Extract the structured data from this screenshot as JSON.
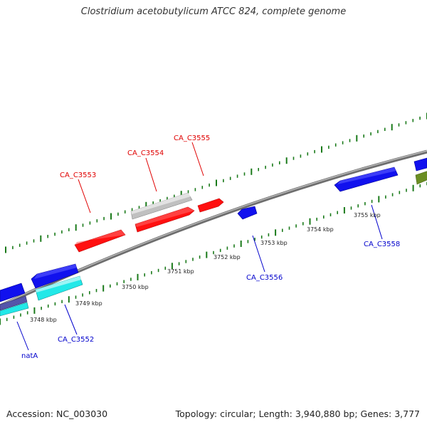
{
  "title": "Clostridium acetobutylicum ATCC 824, complete genome",
  "footer": {
    "accession": "Accession: NC_003030",
    "topology": "Topology: circular; Length: 3,940,880 bp; Genes: 3,777"
  },
  "scale": {
    "color": "#1a7a1a",
    "ticks": [
      {
        "label": "3748 kbp"
      },
      {
        "label": "3749 kbp"
      },
      {
        "label": "3750 kbp"
      },
      {
        "label": "3751 kbp"
      },
      {
        "label": "3752 kbp"
      },
      {
        "label": "3753 kbp"
      },
      {
        "label": "3754 kbp"
      },
      {
        "label": "3755 kbp"
      }
    ]
  },
  "genes": [
    {
      "label": "CA_C3553",
      "color": "#e00000"
    },
    {
      "label": "CA_C3554",
      "color": "#e00000"
    },
    {
      "label": "CA_C3555",
      "color": "#e00000"
    },
    {
      "label": "CA_C3552",
      "color": "#0000cc"
    },
    {
      "label": "natA",
      "color": "#0000cc"
    },
    {
      "label": "CA_C3556",
      "color": "#0000cc"
    },
    {
      "label": "CA_C3558",
      "color": "#0000cc"
    }
  ],
  "colors": {
    "forward": "#ff0000",
    "reverse": "#1111ee",
    "cyan": "#22e8e8",
    "grey_feature": "#c0c0c0",
    "olive": "#6b8e23",
    "backbone": "#909090"
  }
}
